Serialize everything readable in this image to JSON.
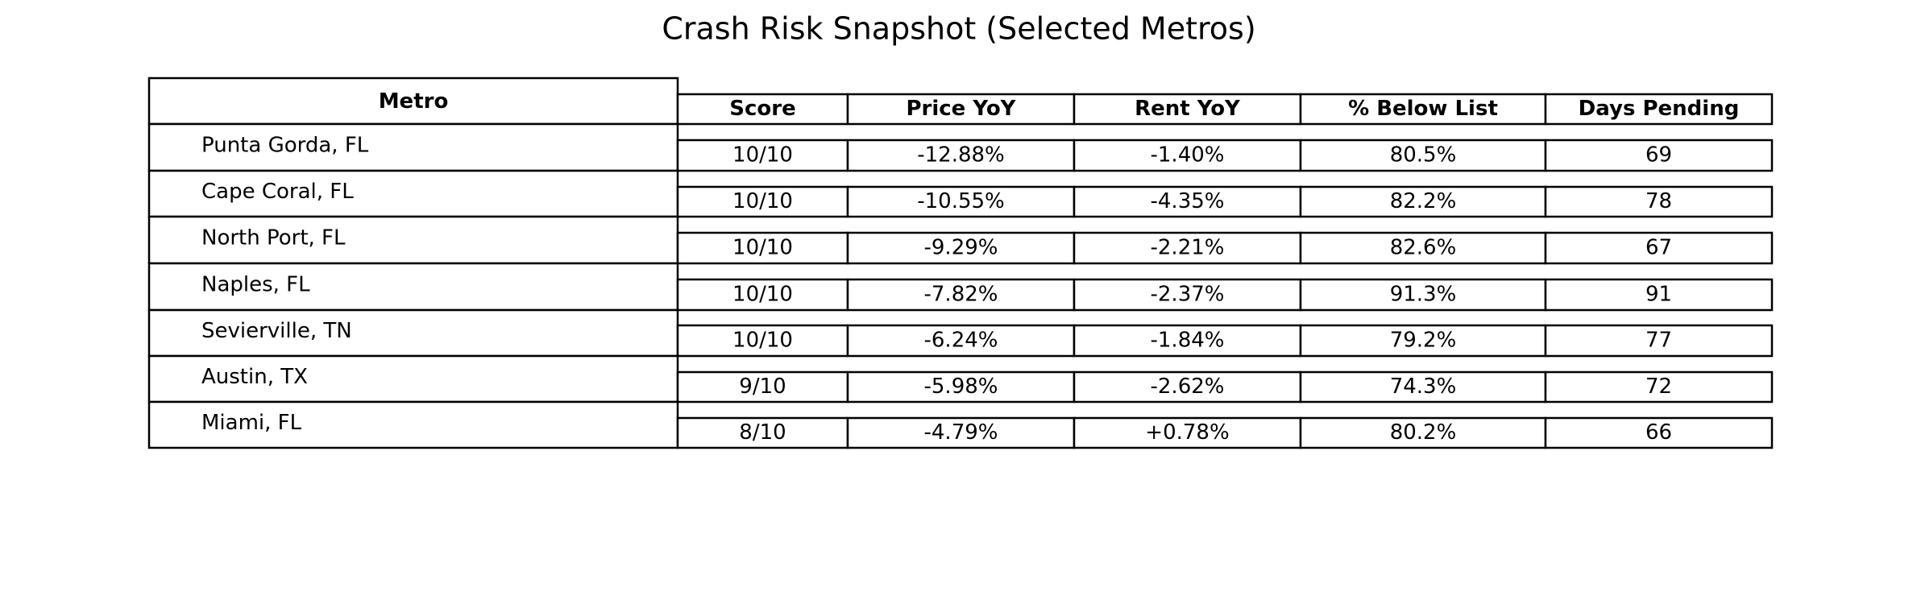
{
  "chart_data": {
    "type": "table",
    "title": "Crash Risk Snapshot (Selected Metros)",
    "columns": [
      "Metro",
      "Score",
      "Price YoY",
      "Rent YoY",
      "% Below List",
      "Days Pending"
    ],
    "rows": [
      [
        "Punta Gorda, FL",
        "10/10",
        "-12.88%",
        "-1.40%",
        "80.5%",
        "69"
      ],
      [
        "Cape Coral, FL",
        "10/10",
        "-10.55%",
        "-4.35%",
        "82.2%",
        "78"
      ],
      [
        "North Port, FL",
        "10/10",
        "-9.29%",
        "-2.21%",
        "82.6%",
        "67"
      ],
      [
        "Naples, FL",
        "10/10",
        "-7.82%",
        "-2.37%",
        "91.3%",
        "91"
      ],
      [
        "Sevierville, TN",
        "10/10",
        "-6.24%",
        "-1.84%",
        "79.2%",
        "77"
      ],
      [
        "Austin, TX",
        "9/10",
        "-5.98%",
        "-2.62%",
        "74.3%",
        "72"
      ],
      [
        "Miami, FL",
        "8/10",
        "-4.79%",
        "+0.78%",
        "80.2%",
        "66"
      ]
    ]
  }
}
